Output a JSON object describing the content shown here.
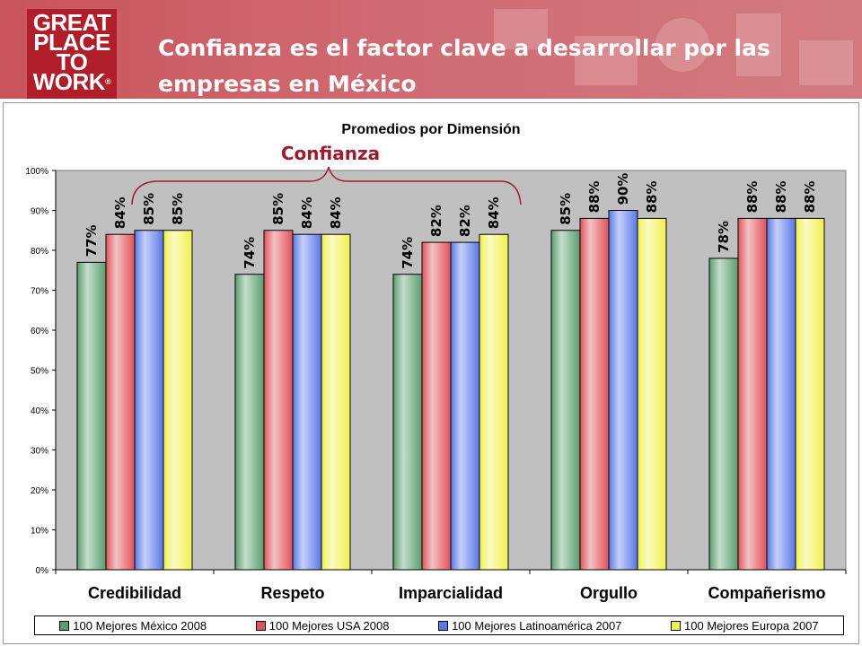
{
  "header": {
    "logo_lines": [
      "GREAT",
      "PLACE",
      "TO",
      "WORK"
    ],
    "logo_mark": "®",
    "title": "Confianza es el factor clave a desarrollar por las empresas en México"
  },
  "annotation": {
    "label": "Confianza",
    "color": "#a01a2a"
  },
  "chart_data": {
    "type": "bar",
    "title": "Promedios por Dimensión",
    "categories": [
      "Credibilidad",
      "Respeto",
      "Imparcialidad",
      "Orgullo",
      "Compañerismo"
    ],
    "series": [
      {
        "name": "100 Mejores México 2008",
        "values": [
          77,
          74,
          74,
          85,
          78
        ],
        "labels": [
          "77%",
          "74%",
          "74%",
          "85%",
          "78%"
        ],
        "color": "#5a9e6e"
      },
      {
        "name": "100 Mejores USA 2008",
        "values": [
          84,
          85,
          82,
          88,
          88
        ],
        "labels": [
          "84%",
          "85%",
          "82%",
          "88%",
          "88%"
        ],
        "color": "#e0525a"
      },
      {
        "name": "100 Mejores Latinoamérica 2007",
        "values": [
          85,
          84,
          82,
          90,
          88
        ],
        "labels": [
          "85%",
          "84%",
          "82%",
          "90%",
          "88%"
        ],
        "color": "#5a78e8"
      },
      {
        "name": "100 Mejores Europa 2007",
        "values": [
          85,
          84,
          84,
          88,
          88
        ],
        "labels": [
          "85%",
          "84%",
          "84%",
          "88%",
          "88%"
        ],
        "color": "#f0f050"
      }
    ],
    "ylim": [
      0,
      100
    ],
    "yticks": [
      "0%",
      "10%",
      "20%",
      "30%",
      "40%",
      "50%",
      "60%",
      "70%",
      "80%",
      "90%",
      "100%"
    ],
    "grid": false,
    "plot_background": "#c0c0c0",
    "legend_position": "bottom"
  }
}
